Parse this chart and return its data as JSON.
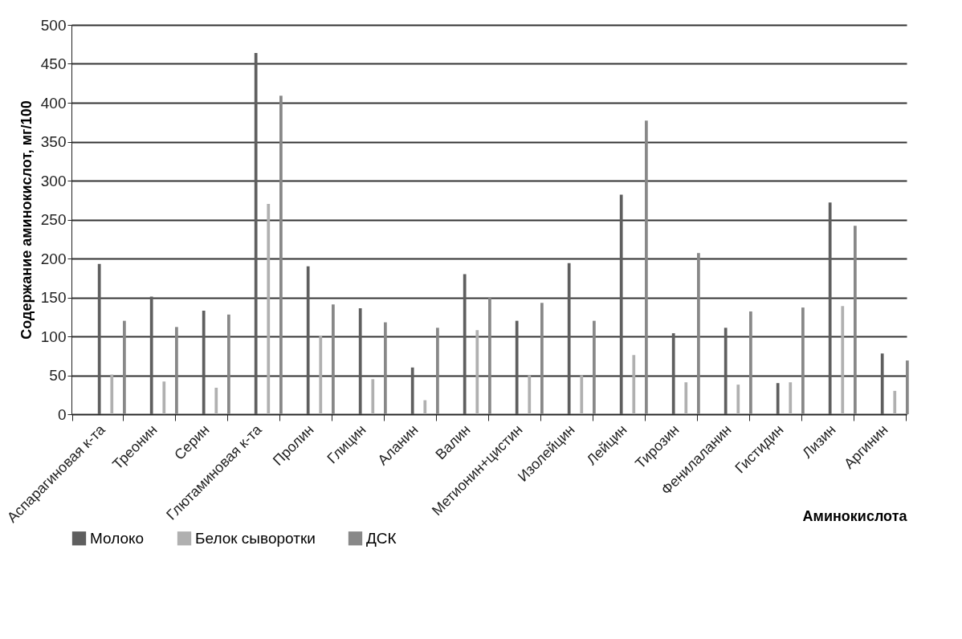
{
  "chart_data": {
    "type": "bar",
    "xlabel": "Аминокислота",
    "ylabel": "Содержание аминокислот, мг/100",
    "categories": [
      "Аспарагиновая к-та",
      "Треонин",
      "Серин",
      "Глютаминовая к-та",
      "Пролин",
      "Глицин",
      "Аланин",
      "Валин",
      "Метионин+цистин",
      "Изолейцин",
      "Лейцин",
      "Тирозин",
      "Фенилаланин",
      "Гистидин",
      "Лизин",
      "Аргинин"
    ],
    "series": [
      {
        "name": "Молоко",
        "color": "#5f5f5f",
        "values": [
          193,
          151,
          133,
          464,
          190,
          136,
          60,
          180,
          120,
          194,
          282,
          104,
          111,
          40,
          272,
          78
        ]
      },
      {
        "name": "Белок сыворотки",
        "color": "#b0b0b0",
        "values": [
          51,
          42,
          34,
          270,
          101,
          45,
          18,
          108,
          50,
          50,
          76,
          41,
          38,
          41,
          139,
          30
        ]
      },
      {
        "name": "ДСК",
        "color": "#888888",
        "values": [
          120,
          112,
          128,
          409,
          141,
          118,
          111,
          150,
          143,
          120,
          377,
          207,
          132,
          137,
          242,
          69
        ]
      }
    ],
    "ylim": [
      0,
      500
    ],
    "yticks": [
      0,
      50,
      100,
      150,
      200,
      250,
      300,
      350,
      400,
      450,
      500
    ],
    "grid": "y",
    "legend": "bottom"
  }
}
